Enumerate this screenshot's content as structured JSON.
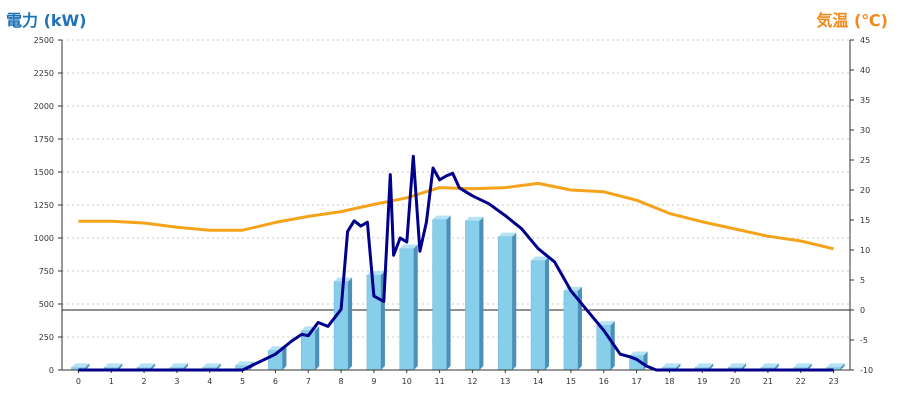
{
  "chart_data": {
    "type": "bar",
    "left_axis_title": "電力 (kW)",
    "right_axis_title": "気温 (℃)",
    "categories": [
      "0",
      "1",
      "2",
      "3",
      "4",
      "5",
      "6",
      "7",
      "8",
      "9",
      "10",
      "11",
      "12",
      "13",
      "14",
      "15",
      "16",
      "17",
      "18",
      "19",
      "20",
      "21",
      "22",
      "23"
    ],
    "ylim_left": [
      0,
      2500
    ],
    "yticks_left": [
      0,
      250,
      500,
      750,
      1000,
      1250,
      1500,
      1750,
      2000,
      2250,
      2500
    ],
    "ylim_right": [
      -10,
      45
    ],
    "yticks_right": [
      -10,
      -5,
      0,
      5,
      10,
      15,
      20,
      25,
      30,
      35,
      40,
      45
    ],
    "grid": true,
    "series": [
      {
        "type": "bar",
        "axis": "left",
        "color": "#87ceeb",
        "values": [
          20,
          20,
          20,
          20,
          20,
          35,
          150,
          300,
          670,
          720,
          920,
          1140,
          1130,
          1010,
          830,
          600,
          340,
          110,
          20,
          20,
          20,
          20,
          20,
          20
        ]
      },
      {
        "type": "line",
        "axis": "left",
        "color": "#00008b",
        "x": [
          0,
          5,
          5.5,
          6,
          6.5,
          6.8,
          7,
          7.3,
          7.6,
          8,
          8.2,
          8.4,
          8.6,
          8.8,
          9,
          9.3,
          9.5,
          9.6,
          9.8,
          10,
          10.2,
          10.4,
          10.6,
          10.8,
          11,
          11.2,
          11.4,
          11.6,
          12,
          12.5,
          13,
          13.5,
          14,
          14.5,
          15,
          15.5,
          16,
          16.5,
          16.8,
          17,
          17.3,
          17.6,
          18,
          23
        ],
        "y": [
          0,
          0,
          60,
          120,
          220,
          270,
          260,
          360,
          330,
          460,
          1050,
          1130,
          1090,
          1120,
          560,
          520,
          1480,
          870,
          1000,
          970,
          1620,
          900,
          1120,
          1530,
          1440,
          1470,
          1490,
          1380,
          1320,
          1260,
          1170,
          1070,
          920,
          820,
          600,
          450,
          300,
          120,
          100,
          80,
          30,
          0,
          0,
          0
        ]
      },
      {
        "type": "line",
        "axis": "right",
        "color": "#f5a31a",
        "x": [
          0,
          1,
          2,
          3,
          4,
          5,
          6,
          7,
          8,
          9,
          10,
          11,
          12,
          13,
          14,
          15,
          16,
          17,
          18,
          19,
          20,
          21,
          22,
          23
        ],
        "y": [
          14.8,
          14.8,
          14.5,
          13.8,
          13.3,
          13.3,
          14.6,
          15.6,
          16.4,
          17.6,
          18.7,
          20.4,
          20.2,
          20.4,
          21.1,
          20.0,
          19.7,
          18.3,
          16.1,
          14.7,
          13.5,
          12.3,
          11.5,
          10.2
        ]
      }
    ]
  }
}
